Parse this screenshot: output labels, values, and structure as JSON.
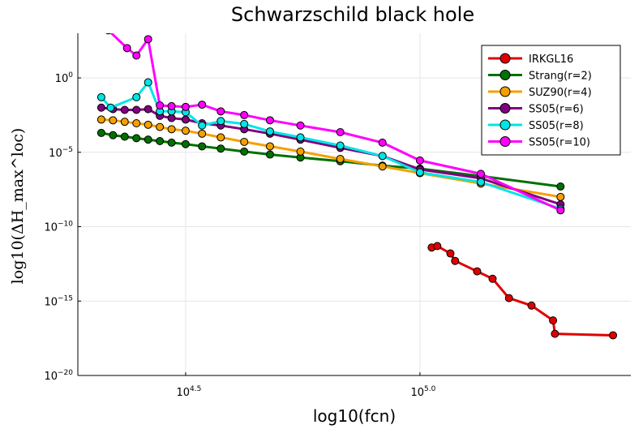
{
  "chart_data": {
    "type": "line",
    "title": "Schwarzschild black hole",
    "xlabel": "log10(fcn)",
    "ylabel": "log10(ΔH_max^loc)",
    "xscale": "log10",
    "yscale": "log10",
    "xlim_log10": [
      4.27,
      5.45
    ],
    "ylim_log10": [
      -20,
      3
    ],
    "x_ticks": [
      {
        "value": 4.5,
        "base": "10",
        "exp": "4.5"
      },
      {
        "value": 5.0,
        "base": "10",
        "exp": "5.0"
      }
    ],
    "y_ticks": [
      {
        "value": 0,
        "base": "10",
        "exp": "0"
      },
      {
        "value": -5,
        "base": "10",
        "exp": "−5"
      },
      {
        "value": -10,
        "base": "10",
        "exp": "−10"
      },
      {
        "value": -15,
        "base": "10",
        "exp": "−15"
      },
      {
        "value": -20,
        "base": "10",
        "exp": "−20"
      }
    ],
    "grid": true,
    "legend_position": "top-right",
    "series": [
      {
        "name": "IRKGL16",
        "color": "#e00000",
        "x": [
          5.025,
          5.037,
          5.065,
          5.075,
          5.122,
          5.155,
          5.19,
          5.238,
          5.284,
          5.288,
          5.412
        ],
        "y": [
          -11.4,
          -11.3,
          -11.8,
          -12.3,
          -13.0,
          -13.5,
          -14.8,
          -15.3,
          -16.3,
          -17.2,
          -17.3
        ]
      },
      {
        "name": "Strang(r=2)",
        "color": "#007000",
        "x": [
          4.32,
          4.345,
          4.37,
          4.395,
          4.42,
          4.445,
          4.47,
          4.5,
          4.535,
          4.575,
          4.625,
          4.68,
          4.745,
          4.83,
          4.92,
          5.0,
          5.13,
          5.3
        ],
        "y": [
          -3.7,
          -3.85,
          -3.95,
          -4.05,
          -4.15,
          -4.25,
          -4.35,
          -4.45,
          -4.6,
          -4.75,
          -4.95,
          -5.15,
          -5.35,
          -5.6,
          -5.9,
          -6.1,
          -6.6,
          -7.3
        ]
      },
      {
        "name": "SUZ90(r=4)",
        "color": "#f5a000",
        "x": [
          4.32,
          4.345,
          4.37,
          4.395,
          4.42,
          4.445,
          4.47,
          4.5,
          4.535,
          4.575,
          4.625,
          4.68,
          4.745,
          4.83,
          4.92,
          5.0,
          5.13,
          5.3
        ],
        "y": [
          -2.8,
          -2.85,
          -2.95,
          -3.05,
          -3.15,
          -3.3,
          -3.45,
          -3.55,
          -3.75,
          -4.0,
          -4.3,
          -4.6,
          -4.95,
          -5.45,
          -5.95,
          -6.4,
          -7.1,
          -8.0
        ]
      },
      {
        "name": "SS05(r=6)",
        "color": "#800080",
        "x": [
          4.32,
          4.345,
          4.37,
          4.395,
          4.42,
          4.445,
          4.47,
          4.5,
          4.535,
          4.575,
          4.625,
          4.68,
          4.745,
          4.83,
          4.92,
          5.0,
          5.13,
          5.3
        ],
        "y": [
          -2.0,
          -2.1,
          -2.15,
          -2.15,
          -2.1,
          -2.55,
          -2.7,
          -2.8,
          -3.05,
          -3.2,
          -3.45,
          -3.75,
          -4.15,
          -4.7,
          -5.25,
          -6.15,
          -6.75,
          -8.5
        ]
      },
      {
        "name": "SS05(r=8)",
        "color": "#00e5e5",
        "x": [
          4.32,
          4.34,
          4.395,
          4.42,
          4.445,
          4.47,
          4.5,
          4.535,
          4.575,
          4.625,
          4.68,
          4.745,
          4.83,
          4.92,
          5.0,
          5.13,
          5.3
        ],
        "y": [
          -1.3,
          -2.0,
          -1.3,
          -0.3,
          -2.25,
          -2.25,
          -2.3,
          -3.2,
          -2.9,
          -3.1,
          -3.6,
          -4.0,
          -4.55,
          -5.25,
          -6.35,
          -7.0,
          -8.8
        ]
      },
      {
        "name": "SS05(r=10)",
        "color": "#ff00ff",
        "x": [
          4.335,
          4.375,
          4.395,
          4.42,
          4.445,
          4.47,
          4.5,
          4.535,
          4.575,
          4.625,
          4.68,
          4.745,
          4.83,
          4.92,
          5.0,
          5.13,
          5.3
        ],
        "y": [
          3.2,
          2.0,
          1.5,
          2.6,
          -1.85,
          -1.9,
          -1.95,
          -1.8,
          -2.25,
          -2.5,
          -2.85,
          -3.2,
          -3.65,
          -4.35,
          -5.55,
          -6.45,
          -8.9
        ]
      }
    ]
  }
}
